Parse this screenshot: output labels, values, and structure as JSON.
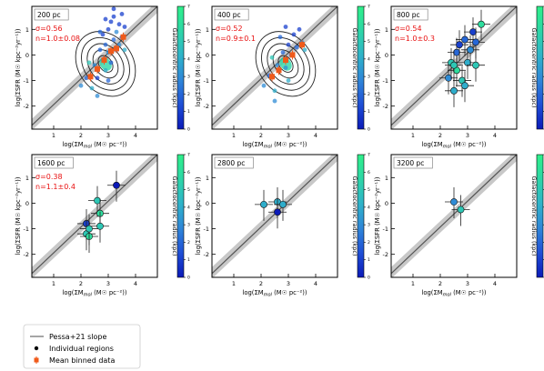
{
  "figure": {
    "ylabel": "log(ΣSFR (M☉ kpc⁻²yr⁻¹))",
    "xlabel": "log(ΣM",
    "xlabel_sub": "mol",
    "xlabel_tail": " (M☉ pc⁻²))",
    "colorbar_label": "Galactocentric radius (kpc)",
    "colorbar_ticks": [
      "0",
      "1",
      "2",
      "3",
      "4",
      "5",
      "6",
      "7"
    ],
    "colormap": [
      "#0b1ab8",
      "#1f4fd6",
      "#2f86d8",
      "#2fb3c9",
      "#2dd6a6",
      "#2ff08a"
    ],
    "legend": [
      {
        "label": "Pessa+21 slope",
        "marker": "line",
        "color": "#888888"
      },
      {
        "label": "Individual regions",
        "marker": "dot",
        "color": "#000000"
      },
      {
        "label": "Mean binned data",
        "marker": "square-errorbar",
        "color": "#f05a1a"
      }
    ]
  },
  "chart_data": [
    {
      "type": "scatter",
      "label": "200 pc",
      "sigma": "σ=0.56",
      "slope": "n=1.0±0.08",
      "xlim": [
        0.2,
        4.8
      ],
      "ylim": [
        -2.9,
        1.9
      ],
      "xticks": [
        "1",
        "2",
        "3",
        "4"
      ],
      "yticks": [
        "-2",
        "-1",
        "0",
        "1"
      ],
      "contours": true,
      "points_style": "small",
      "points": [
        [
          2.0,
          -1.2,
          3
        ],
        [
          2.2,
          -0.9,
          2
        ],
        [
          2.4,
          -1.3,
          4
        ],
        [
          2.5,
          -0.4,
          3
        ],
        [
          2.6,
          -0.9,
          1
        ],
        [
          2.7,
          0.2,
          2
        ],
        [
          2.8,
          -0.2,
          3
        ],
        [
          2.8,
          0.8,
          1
        ],
        [
          2.9,
          0.4,
          2
        ],
        [
          2.9,
          -0.6,
          4
        ],
        [
          3.0,
          1.0,
          1
        ],
        [
          3.0,
          0.1,
          3
        ],
        [
          3.1,
          -0.3,
          2
        ],
        [
          3.1,
          1.3,
          1
        ],
        [
          3.2,
          0.6,
          2
        ],
        [
          3.2,
          1.5,
          1
        ],
        [
          3.3,
          0.9,
          3
        ],
        [
          3.3,
          0.2,
          2
        ],
        [
          3.4,
          1.2,
          1
        ],
        [
          3.4,
          0.4,
          3
        ],
        [
          3.5,
          1.6,
          1
        ],
        [
          3.5,
          0.7,
          2
        ],
        [
          3.6,
          1.1,
          1
        ],
        [
          2.3,
          -0.3,
          5
        ],
        [
          2.6,
          -1.6,
          3
        ],
        [
          3.0,
          -1.0,
          2
        ],
        [
          2.9,
          1.4,
          1
        ],
        [
          3.2,
          1.8,
          1
        ],
        [
          2.7,
          0.9,
          2
        ],
        [
          3.6,
          0.2,
          4
        ]
      ],
      "mean_binned": [
        [
          2.35,
          -0.85
        ],
        [
          2.6,
          -0.55
        ],
        [
          2.85,
          -0.2
        ],
        [
          3.1,
          0.15
        ],
        [
          3.3,
          0.25
        ],
        [
          3.55,
          0.7
        ]
      ]
    },
    {
      "type": "scatter",
      "label": "400 pc",
      "sigma": "σ=0.52",
      "slope": "n=0.9±0.1",
      "xlim": [
        0.2,
        4.8
      ],
      "ylim": [
        -2.9,
        1.9
      ],
      "xticks": [
        "1",
        "2",
        "3",
        "4"
      ],
      "yticks": [
        "-2",
        "-1",
        "0",
        "1"
      ],
      "contours": true,
      "points_style": "small",
      "points": [
        [
          2.1,
          -1.2,
          3
        ],
        [
          2.3,
          -0.8,
          2
        ],
        [
          2.5,
          -1.4,
          4
        ],
        [
          2.6,
          -0.4,
          3
        ],
        [
          2.8,
          0.1,
          2
        ],
        [
          2.9,
          -0.5,
          3
        ],
        [
          3.0,
          0.4,
          1
        ],
        [
          3.0,
          -1.0,
          4
        ],
        [
          3.1,
          0.0,
          2
        ],
        [
          3.2,
          0.8,
          1
        ],
        [
          3.3,
          0.3,
          2
        ],
        [
          3.4,
          1.0,
          1
        ],
        [
          3.5,
          0.5,
          3
        ],
        [
          2.7,
          0.7,
          2
        ],
        [
          2.4,
          -0.1,
          5
        ],
        [
          3.6,
          0.2,
          4
        ],
        [
          2.9,
          1.1,
          1
        ],
        [
          2.5,
          -1.8,
          3
        ]
      ],
      "mean_binned": [
        [
          2.4,
          -0.85
        ],
        [
          2.65,
          -0.6
        ],
        [
          2.9,
          -0.2
        ],
        [
          3.15,
          0.0
        ],
        [
          3.5,
          0.4
        ]
      ]
    },
    {
      "type": "scatter",
      "label": "800 pc",
      "sigma": "σ=0.54",
      "slope": "n=1.0±0.3",
      "xlim": [
        0.2,
        4.8
      ],
      "ylim": [
        -2.9,
        1.9
      ],
      "xticks": [
        "1",
        "2",
        "3",
        "4"
      ],
      "yticks": [
        "-2",
        "-1",
        "0",
        "1"
      ],
      "contours": false,
      "points_style": "large",
      "points": [
        [
          2.3,
          -0.9,
          3
        ],
        [
          2.4,
          -0.3,
          5
        ],
        [
          2.5,
          -1.4,
          4
        ],
        [
          2.6,
          0.1,
          2
        ],
        [
          2.6,
          -0.6,
          6
        ],
        [
          2.7,
          0.4,
          1
        ],
        [
          2.8,
          -1.0,
          5
        ],
        [
          2.9,
          0.6,
          2
        ],
        [
          3.0,
          -0.3,
          4
        ],
        [
          3.1,
          0.2,
          3
        ],
        [
          3.2,
          0.9,
          1
        ],
        [
          3.3,
          0.5,
          2
        ],
        [
          3.5,
          1.2,
          6
        ],
        [
          2.5,
          -0.4,
          5
        ],
        [
          2.9,
          -1.2,
          4
        ],
        [
          3.3,
          -0.4,
          5
        ]
      ],
      "mean_binned": []
    },
    {
      "type": "scatter",
      "label": "1600 pc",
      "sigma": "σ=0.38",
      "slope": "n=1.1±0.4",
      "xlim": [
        0.2,
        4.8
      ],
      "ylim": [
        -2.9,
        1.9
      ],
      "xticks": [
        "1",
        "2",
        "3",
        "4"
      ],
      "yticks": [
        "-2",
        "-1",
        "0",
        "1"
      ],
      "contours": false,
      "points_style": "large",
      "points": [
        [
          2.2,
          -0.8,
          1
        ],
        [
          2.2,
          -1.2,
          5
        ],
        [
          2.3,
          -1.3,
          6
        ],
        [
          2.3,
          -1.0,
          5
        ],
        [
          2.6,
          0.1,
          5
        ],
        [
          2.7,
          -0.4,
          6
        ],
        [
          2.7,
          -0.9,
          5
        ],
        [
          3.3,
          0.7,
          0
        ]
      ],
      "mean_binned": []
    },
    {
      "type": "scatter",
      "label": "2800 pc",
      "sigma": "",
      "slope": "",
      "xlim": [
        0.2,
        4.8
      ],
      "ylim": [
        -2.9,
        1.9
      ],
      "xticks": [
        "1",
        "2",
        "3",
        "4"
      ],
      "yticks": [
        "-2",
        "-1",
        "0",
        "1"
      ],
      "contours": false,
      "points_style": "large",
      "points": [
        [
          2.1,
          -0.05,
          4
        ],
        [
          2.6,
          0.05,
          4
        ],
        [
          2.8,
          -0.05,
          4
        ],
        [
          2.6,
          -0.35,
          0
        ]
      ],
      "mean_binned": []
    },
    {
      "type": "scatter",
      "label": "3200 pc",
      "sigma": "",
      "slope": "",
      "xlim": [
        0.2,
        4.8
      ],
      "ylim": [
        -2.9,
        1.9
      ],
      "xticks": [
        "1",
        "2",
        "3",
        "4"
      ],
      "yticks": [
        "-2",
        "-1",
        "0",
        "1"
      ],
      "contours": false,
      "points_style": "large",
      "points": [
        [
          2.5,
          0.05,
          3
        ],
        [
          2.75,
          -0.25,
          5
        ]
      ],
      "mean_binned": []
    }
  ]
}
